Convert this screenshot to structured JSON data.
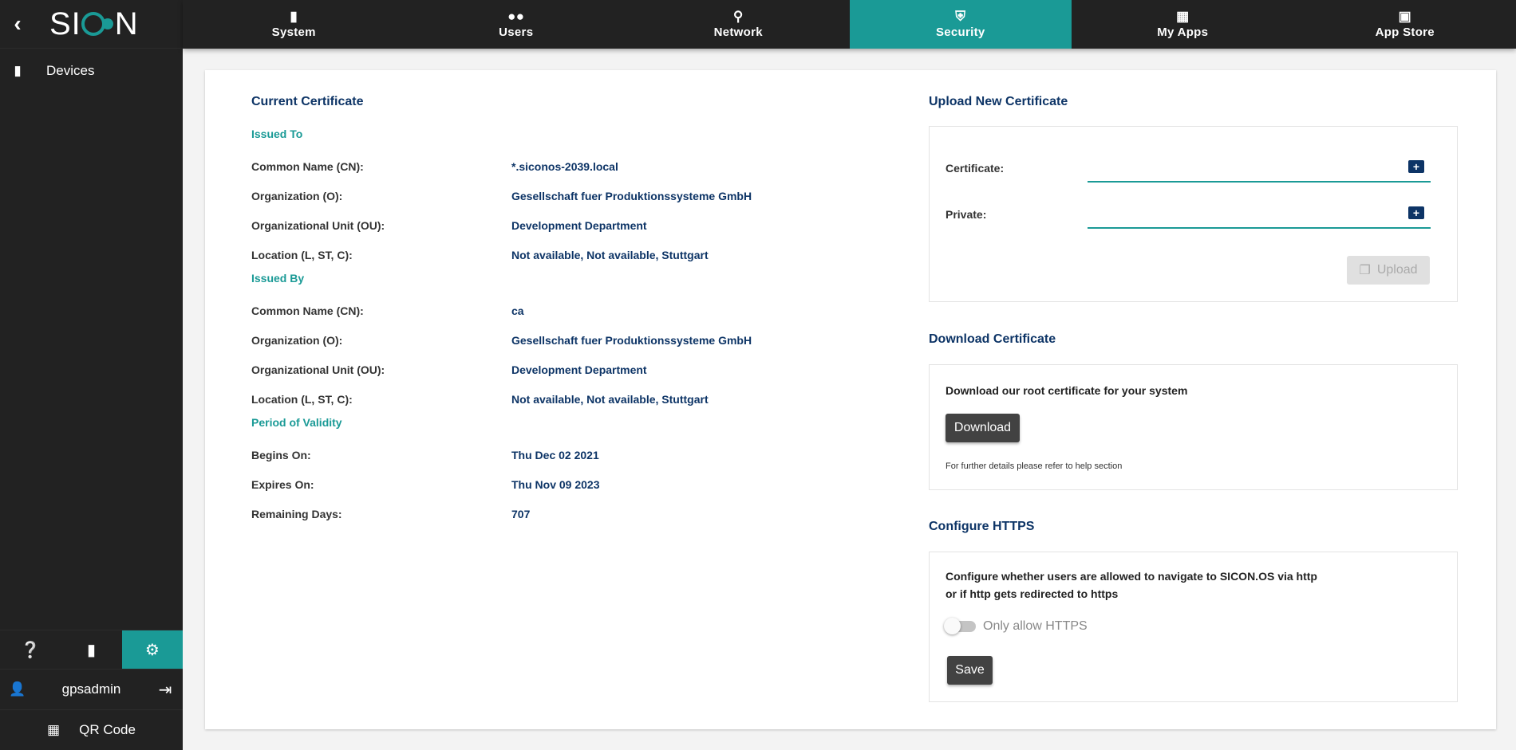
{
  "brand": {
    "logo": "SICON"
  },
  "sidebar": {
    "items": [
      {
        "label": "Devices",
        "icon": "plug-icon"
      }
    ],
    "bottom_icons": [
      "help-icon",
      "ethernet-icon",
      "gear-icon"
    ],
    "user": "gpsadmin",
    "qr_label": "QR Code"
  },
  "nav": {
    "tabs": [
      {
        "label": "System",
        "icon": "plug-icon"
      },
      {
        "label": "Users",
        "icon": "users-icon"
      },
      {
        "label": "Network",
        "icon": "network-icon"
      },
      {
        "label": "Security",
        "icon": "shield-icon",
        "active": true
      },
      {
        "label": "My Apps",
        "icon": "grid-icon"
      },
      {
        "label": "App Store",
        "icon": "store-icon"
      }
    ]
  },
  "current": {
    "title": "Current Certificate",
    "issued_to": {
      "title": "Issued To",
      "rows": [
        {
          "label": "Common Name (CN):",
          "value": "*.siconos-2039.local"
        },
        {
          "label": "Organization (O):",
          "value": "Gesellschaft fuer Produktionssysteme GmbH"
        },
        {
          "label": "Organizational Unit (OU):",
          "value": "Development Department"
        },
        {
          "label": "Location (L, ST, C):",
          "value": "Not available, Not available, Stuttgart"
        }
      ]
    },
    "issued_by": {
      "title": "Issued By",
      "rows": [
        {
          "label": "Common Name (CN):",
          "value": "ca"
        },
        {
          "label": "Organization (O):",
          "value": "Gesellschaft fuer Produktionssysteme GmbH"
        },
        {
          "label": "Organizational Unit (OU):",
          "value": "Development Department"
        },
        {
          "label": "Location (L, ST, C):",
          "value": "Not available, Not available, Stuttgart"
        }
      ]
    },
    "validity": {
      "title": "Period of Validity",
      "rows": [
        {
          "label": "Begins On:",
          "value": "Thu Dec 02 2021"
        },
        {
          "label": "Expires On:",
          "value": "Thu Nov 09 2023"
        },
        {
          "label": "Remaining Days:",
          "value": "707"
        }
      ]
    }
  },
  "upload": {
    "title": "Upload New Certificate",
    "certificate_label": "Certificate:",
    "private_label": "Private:",
    "button": "Upload"
  },
  "download": {
    "title": "Download Certificate",
    "text": "Download our root certificate for your system",
    "button": "Download",
    "note": "For further details please refer to help section"
  },
  "https": {
    "title": "Configure HTTPS",
    "text1": "Configure whether users are allowed to navigate to SICON.OS via http",
    "text2": "or if http gets redirected to https",
    "toggle_label": "Only allow HTTPS",
    "toggle_on": false,
    "button": "Save"
  },
  "colors": {
    "accent": "#1a9a96",
    "navy": "#0d3466",
    "dark": "#222222"
  }
}
